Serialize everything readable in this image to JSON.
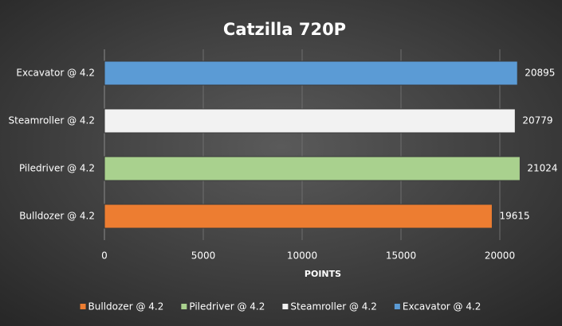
{
  "chart_data": {
    "type": "bar",
    "orientation": "horizontal",
    "title": "Catzilla 720P",
    "x_label": "POINTS",
    "categories": [
      "Bulldozer @ 4.2",
      "Piledriver @ 4.2",
      "Steamroller @ 4.2",
      "Excavator @ 4.2"
    ],
    "values": [
      19615,
      21024,
      20779,
      20895
    ],
    "colors": [
      "#ed7d31",
      "#a9d18e",
      "#f2f2f2",
      "#5b9bd5"
    ],
    "xlim": [
      0,
      22000
    ],
    "xticks": [
      0,
      5000,
      10000,
      15000,
      20000
    ],
    "grid": true,
    "legend": "bottom"
  }
}
